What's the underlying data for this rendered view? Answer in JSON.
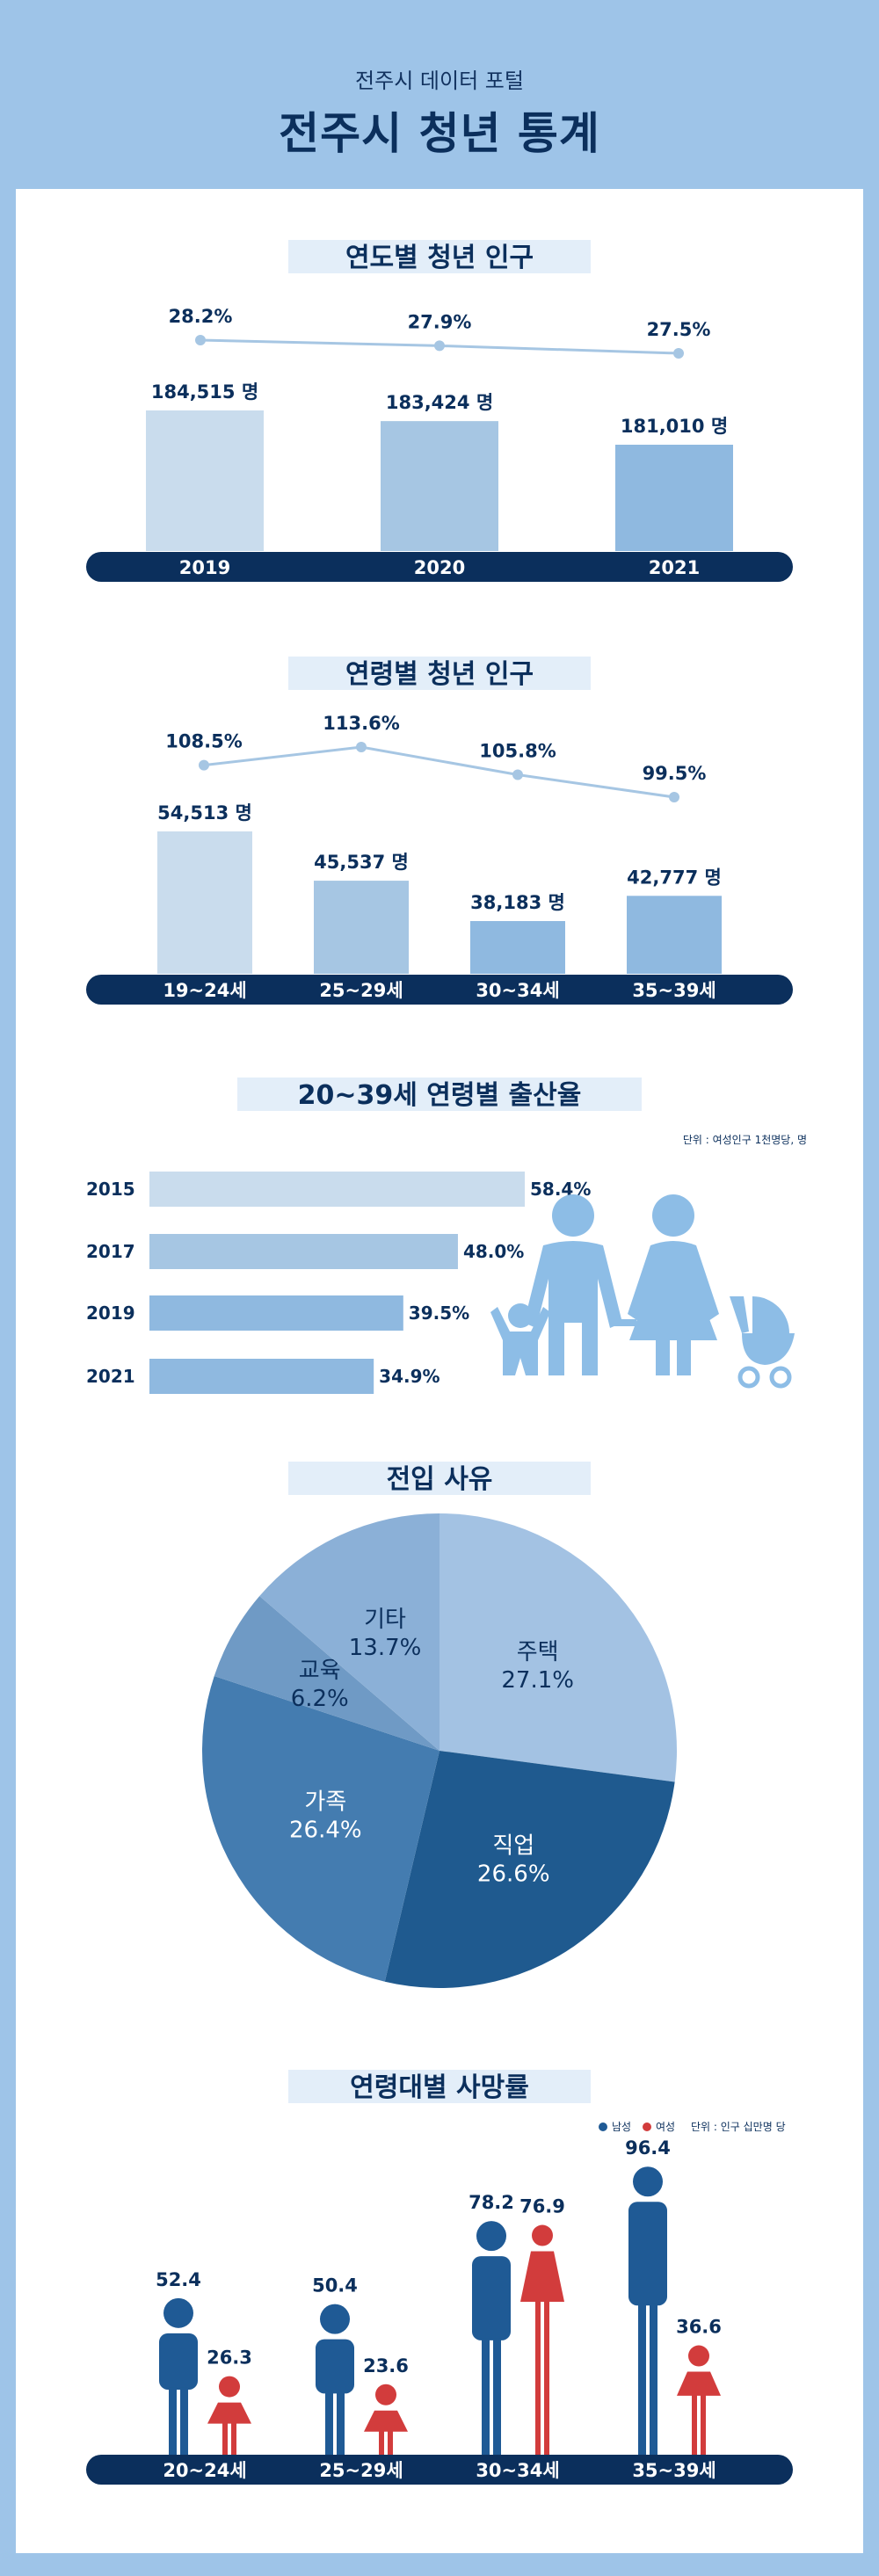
{
  "header": {
    "subtitle": "전주시 데이터 포털",
    "title": "전주시 청년 통계"
  },
  "colors": {
    "navy": "#0b2f5c",
    "bar1": "#c9dced",
    "bar2": "#a6c6e3",
    "bar3": "#8fb9e0",
    "male": "#1f5a95",
    "female": "#d23c3c"
  },
  "section1": {
    "title": "연도별 청년 인구",
    "chart_data": {
      "type": "bar",
      "categories": [
        "2019",
        "2020",
        "2021"
      ],
      "values": [
        184515,
        183424,
        181010
      ],
      "value_labels": [
        "184,515 명",
        "183,424 명",
        "181,010 명"
      ],
      "line_values": [
        28.2,
        27.9,
        27.5
      ],
      "line_labels": [
        "28.2%",
        "27.9%",
        "27.5%"
      ]
    }
  },
  "section2": {
    "title": "연령별 청년 인구",
    "chart_data": {
      "type": "bar",
      "categories": [
        "19~24세",
        "25~29세",
        "30~34세",
        "35~39세"
      ],
      "values": [
        54513,
        45537,
        38183,
        42777
      ],
      "value_labels": [
        "54,513 명",
        "45,537 명",
        "38,183 명",
        "42,777 명"
      ],
      "line_values": [
        108.5,
        113.6,
        105.8,
        99.5
      ],
      "line_labels": [
        "108.5%",
        "113.6%",
        "105.8%",
        "99.5%"
      ]
    }
  },
  "section3": {
    "title": "20~39세 연령별 출산율",
    "unit": "단위 : 여성인구 1천명당, 명",
    "chart_data": {
      "type": "bar",
      "orientation": "horizontal",
      "categories": [
        "2015",
        "2017",
        "2019",
        "2021"
      ],
      "values": [
        58.4,
        48.0,
        39.5,
        34.9
      ],
      "value_labels": [
        "58.4%",
        "48.0%",
        "39.5%",
        "34.9%"
      ]
    }
  },
  "section4": {
    "title": "전입 사유",
    "chart_data": {
      "type": "pie",
      "slices": [
        {
          "label": "주택",
          "value": 27.1,
          "value_label": "27.1%",
          "color": "#a3c2e3"
        },
        {
          "label": "직업",
          "value": 26.6,
          "value_label": "26.6%",
          "color": "#1f5a8f"
        },
        {
          "label": "가족",
          "value": 26.4,
          "value_label": "26.4%",
          "color": "#447cb0"
        },
        {
          "label": "교육",
          "value": 6.2,
          "value_label": "6.2%",
          "color": "#6f9ac5"
        },
        {
          "label": "기타",
          "value": 13.7,
          "value_label": "13.7%",
          "color": "#8bb0d7"
        }
      ]
    }
  },
  "section5": {
    "title": "연령대별 사망률",
    "legend": {
      "male": "남성",
      "female": "여성",
      "unit": "단위 : 인구 십만명 당"
    },
    "chart_data": {
      "type": "bar",
      "categories": [
        "20~24세",
        "25~29세",
        "30~34세",
        "35~39세"
      ],
      "series": [
        {
          "name": "남성",
          "values": [
            52.4,
            50.4,
            78.2,
            96.4
          ]
        },
        {
          "name": "여성",
          "values": [
            26.3,
            23.6,
            76.9,
            36.6
          ]
        }
      ]
    }
  }
}
